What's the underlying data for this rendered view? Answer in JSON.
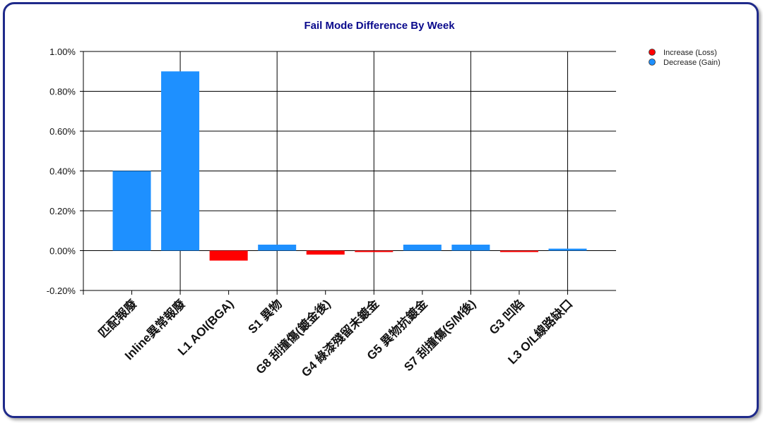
{
  "chart_data": {
    "type": "bar",
    "title": "Fail Mode Difference By Week",
    "xlabel": "",
    "ylabel": "",
    "categories": [
      "匹配報廢",
      "Inline異常報廢",
      "L1 AOI(BGA)",
      "S1 異物",
      "G8 刮撞傷(鍍金後)",
      "G4 綠漆殘留未鍍金",
      "G5 異物抗鍍金",
      "S7 刮撞傷(S/M後)",
      "G3 凹陷",
      "L3 O/L線路缺口"
    ],
    "values": [
      0.4,
      0.9,
      -0.05,
      0.03,
      -0.02,
      -0.005,
      0.03,
      0.03,
      -0.005,
      0.01
    ],
    "ylim": [
      -0.2,
      1.0
    ],
    "yticks": [
      "1.00%",
      "0.80%",
      "0.60%",
      "0.40%",
      "0.20%",
      "0.00%",
      "-0.20%"
    ],
    "ytick_values": [
      1.0,
      0.8,
      0.6,
      0.4,
      0.2,
      0.0,
      -0.2
    ],
    "grid": true,
    "legend": {
      "placement": "top-right",
      "items": [
        {
          "label": "Increase (Loss)",
          "color": "#ff0000"
        },
        {
          "label": "Decrease (Gain)",
          "color": "#1e90ff"
        }
      ]
    },
    "colors": {
      "increase": "#ff0000",
      "decrease": "#1e90ff",
      "title": "#0a0a8c"
    }
  }
}
